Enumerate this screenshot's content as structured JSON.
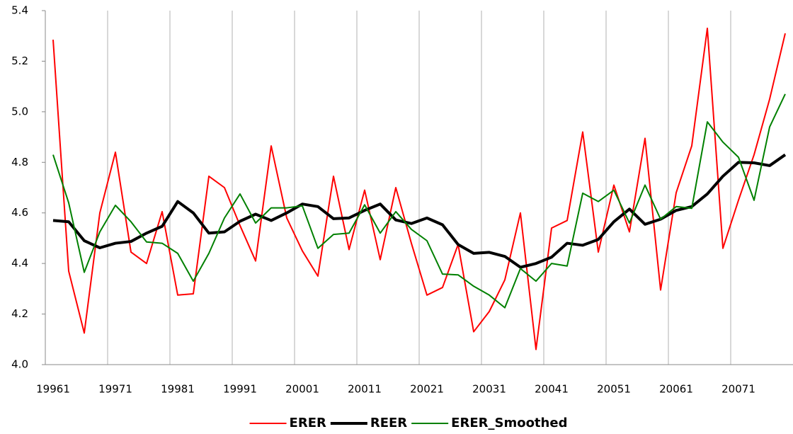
{
  "chart_data": {
    "type": "line",
    "categories": [
      "19961",
      null,
      null,
      null,
      "19971",
      null,
      null,
      null,
      "19981",
      null,
      null,
      null,
      "19991",
      null,
      null,
      null,
      "20001",
      null,
      null,
      null,
      "20011",
      null,
      null,
      null,
      "20021",
      null,
      null,
      null,
      "20031",
      null,
      null,
      null,
      "20041",
      null,
      null,
      null,
      "20051",
      null,
      null,
      null,
      "20061",
      null,
      null,
      null,
      "20071",
      null,
      null,
      null
    ],
    "series": [
      {
        "name": "ERER",
        "color": "#ff0000",
        "width": 2,
        "values": [
          5.285,
          4.37,
          4.125,
          4.6,
          4.84,
          4.445,
          4.4,
          4.605,
          4.275,
          4.28,
          4.745,
          4.7,
          4.55,
          4.41,
          4.865,
          4.58,
          4.45,
          4.35,
          4.745,
          4.455,
          4.69,
          4.415,
          4.7,
          4.48,
          4.275,
          4.305,
          4.475,
          4.13,
          4.21,
          4.335,
          4.6,
          4.06,
          4.54,
          4.57,
          4.92,
          4.445,
          4.71,
          4.525,
          4.895,
          4.295,
          4.68,
          4.865,
          5.33,
          4.46,
          4.65,
          4.83,
          5.05,
          5.31
        ]
      },
      {
        "name": "REER",
        "color": "#000000",
        "width": 4,
        "values": [
          4.57,
          4.565,
          4.49,
          4.462,
          4.48,
          4.487,
          4.52,
          4.547,
          4.645,
          4.6,
          4.52,
          4.525,
          4.567,
          4.595,
          4.57,
          4.6,
          4.635,
          4.625,
          4.577,
          4.58,
          4.61,
          4.635,
          4.572,
          4.558,
          4.58,
          4.553,
          4.475,
          4.44,
          4.444,
          4.428,
          4.385,
          4.4,
          4.425,
          4.48,
          4.472,
          4.495,
          4.565,
          4.615,
          4.555,
          4.575,
          4.61,
          4.625,
          4.675,
          4.745,
          4.8,
          4.798,
          4.787,
          4.83
        ]
      },
      {
        "name": "ERER_Smoothed",
        "color": "#008000",
        "width": 2,
        "values": [
          4.83,
          4.64,
          4.365,
          4.525,
          4.63,
          4.565,
          4.485,
          4.48,
          4.44,
          4.33,
          4.44,
          4.58,
          4.675,
          4.56,
          4.62,
          4.62,
          4.628,
          4.46,
          4.515,
          4.52,
          4.632,
          4.52,
          4.605,
          4.535,
          4.49,
          4.358,
          4.355,
          4.31,
          4.275,
          4.225,
          4.38,
          4.33,
          4.4,
          4.39,
          4.678,
          4.645,
          4.69,
          4.56,
          4.71,
          4.575,
          4.625,
          4.618,
          4.96,
          4.88,
          4.82,
          4.65,
          4.94,
          5.07
        ]
      }
    ],
    "ylim": [
      4.0,
      5.4
    ],
    "yticks": [
      {
        "value": 4.0,
        "label": "4.0"
      },
      {
        "value": 4.2,
        "label": "4.2"
      },
      {
        "value": 4.4,
        "label": "4.4"
      },
      {
        "value": 4.6,
        "label": "4.6"
      },
      {
        "value": 4.8,
        "label": "4.8"
      },
      {
        "value": 5.0,
        "label": "5.0"
      },
      {
        "value": 5.2,
        "label": "5.2"
      },
      {
        "value": 5.4,
        "label": "5.4"
      }
    ],
    "legend": "bottom"
  }
}
